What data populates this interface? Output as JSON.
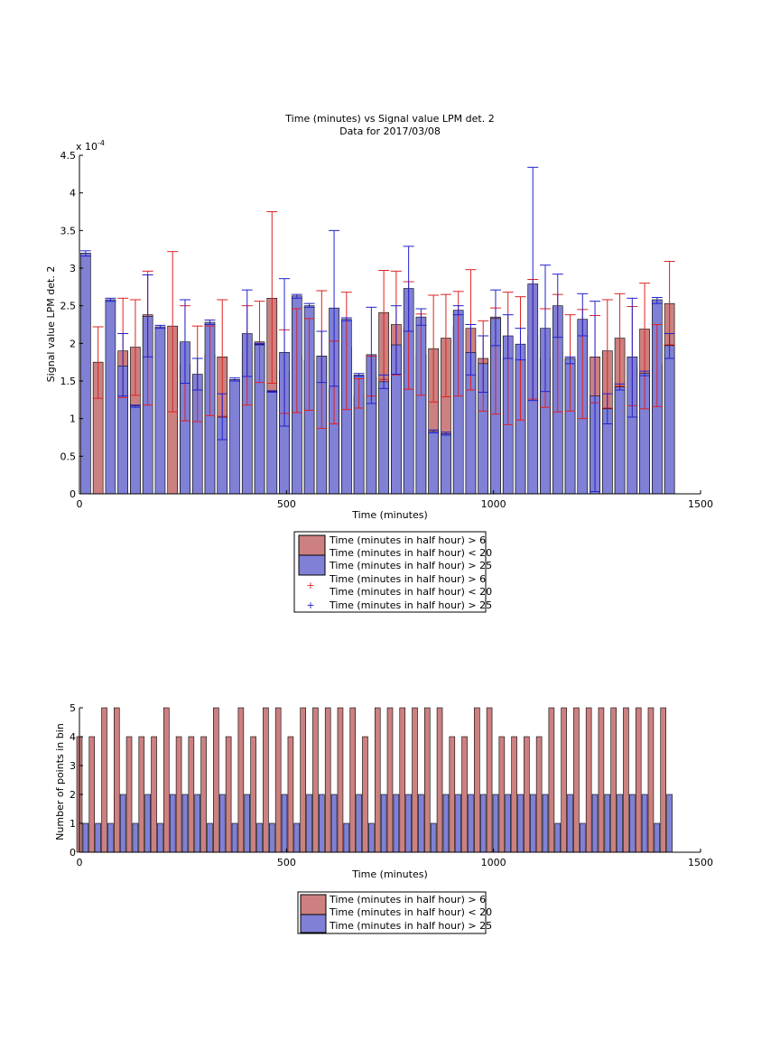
{
  "colors": {
    "red_bar": "#cc8080",
    "blue_bar": "#8080d6",
    "red_err": "#dd2222",
    "blue_err": "#2222cc",
    "axis": "#000000"
  },
  "chart_data": [
    {
      "type": "bar",
      "title": "Time (minutes) vs Signal value LPM det. 2",
      "subtitle": "Data for 2017/03/08",
      "xlabel": "Time (minutes)",
      "ylabel": "Signal value LPM det. 2",
      "y_exponent_label": "x 10",
      "y_exponent_power": "-4",
      "xlim": [
        0,
        1500
      ],
      "ylim": [
        0,
        4.5
      ],
      "xticks": [
        "0",
        "500",
        "1000",
        "1500"
      ],
      "yticks": [
        "0",
        "0.5",
        "1",
        "1.5",
        "2",
        "2.5",
        "3",
        "3.5",
        "4",
        "4.5"
      ],
      "grid": false,
      "legend": {
        "position": "below",
        "entries": [
          "Time (minutes in half hour) > 6",
          "Time (minutes in half hour) < 20",
          "Time (minutes in half hour) > 25",
          "Time (minutes in half hour) > 6",
          "Time (minutes in half hour) < 20",
          "Time (minutes in half hour) > 25"
        ]
      },
      "series": [
        {
          "name": "Time (minutes in half hour) > 6 / Time (minutes in half hour) < 20",
          "color": "#cc8080",
          "x": [
            45,
            105,
            135,
            165,
            225,
            255,
            285,
            315,
            345,
            405,
            435,
            465,
            495,
            525,
            555,
            585,
            615,
            645,
            675,
            705,
            735,
            765,
            795,
            825,
            855,
            885,
            915,
            945,
            975,
            1005,
            1035,
            1065,
            1095,
            1125,
            1155,
            1185,
            1215,
            1245,
            1275,
            1305,
            1335,
            1365,
            1395,
            1425
          ],
          "values": [
            1.75,
            1.9,
            1.95,
            2.38,
            2.23,
            1.72,
            1.55,
            1.85,
            1.82,
            1.9,
            2.02,
            2.6,
            1.63,
            1.83,
            1.77,
            1.83,
            1.4,
            1.95,
            1.3,
            1.55,
            2.41,
            2.25,
            2.2,
            1.85,
            1.93,
            2.07,
            2.22,
            2.2,
            1.8,
            2.35,
            1.8,
            1.8,
            2.1,
            1.8,
            1.9,
            1.8,
            1.8,
            1.82,
            1.9,
            2.07,
            1.7,
            2.19,
            1.72,
            2.53
          ],
          "err_low": [
            1.27,
            1.28,
            1.31,
            1.18,
            1.09,
            0.97,
            0.96,
            1.04,
            1.03,
            1.18,
            1.48,
            1.47,
            1.07,
            1.08,
            1.11,
            0.87,
            0.93,
            1.12,
            1.14,
            1.3,
            1.52,
            1.58,
            1.39,
            1.31,
            1.22,
            1.29,
            1.3,
            1.38,
            1.1,
            1.06,
            0.92,
            0.98,
            1.26,
            1.15,
            1.09,
            1.1,
            1.0,
            1.21,
            1.14,
            1.43,
            1.17,
            1.13,
            1.16,
            1.98
          ],
          "err_high": [
            2.22,
            2.6,
            2.58,
            2.96,
            3.22,
            2.5,
            2.23,
            2.23,
            2.58,
            2.5,
            2.56,
            3.75,
            2.18,
            2.46,
            2.33,
            2.7,
            2.03,
            2.68,
            1.53,
            1.83,
            2.97,
            2.96,
            2.82,
            2.39,
            2.64,
            2.65,
            2.69,
            2.98,
            2.3,
            2.47,
            2.68,
            2.62,
            2.85,
            2.46,
            2.65,
            2.38,
            2.45,
            2.37,
            2.58,
            2.66,
            2.49,
            2.8,
            2.25,
            3.09
          ]
        },
        {
          "name": "Time (minutes in half hour) > 25",
          "color": "#8080d6",
          "x": [
            15,
            75,
            105,
            135,
            165,
            195,
            255,
            285,
            315,
            345,
            375,
            405,
            435,
            465,
            495,
            525,
            555,
            585,
            615,
            645,
            675,
            705,
            735,
            765,
            795,
            825,
            855,
            885,
            915,
            945,
            975,
            1005,
            1035,
            1065,
            1095,
            1125,
            1155,
            1185,
            1215,
            1245,
            1275,
            1305,
            1335,
            1365,
            1395,
            1425
          ],
          "values": [
            3.2,
            2.58,
            1.7,
            1.17,
            2.36,
            2.22,
            2.02,
            1.59,
            2.28,
            1.02,
            1.52,
            2.13,
            1.99,
            1.36,
            1.88,
            2.63,
            2.5,
            1.83,
            2.47,
            2.32,
            1.58,
            1.85,
            1.49,
            1.98,
            2.73,
            2.35,
            0.83,
            0.8,
            2.44,
            1.88,
            1.73,
            2.33,
            2.1,
            1.99,
            2.79,
            2.2,
            2.5,
            1.8,
            2.32,
            1.3,
            1.13,
            1.42,
            1.82,
            1.6,
            2.58,
            1.97
          ],
          "err_low": [
            3.16,
            2.56,
            1.3,
            1.15,
            1.82,
            2.2,
            1.47,
            1.38,
            2.25,
            0.72,
            1.5,
            1.56,
            1.98,
            1.35,
            0.9,
            2.6,
            2.48,
            1.48,
            1.43,
            2.3,
            1.56,
            1.2,
            1.4,
            1.59,
            2.16,
            2.24,
            0.81,
            0.78,
            2.38,
            1.58,
            1.35,
            1.97,
            1.8,
            1.78,
            1.24,
            1.36,
            2.08,
            1.73,
            2.1,
            0.03,
            0.93,
            1.38,
            1.02,
            1.57,
            2.53,
            1.8
          ],
          "err_high": [
            3.23,
            2.6,
            2.13,
            1.18,
            2.91,
            2.24,
            2.58,
            1.8,
            2.31,
            1.33,
            1.54,
            2.71,
            2.0,
            1.37,
            2.86,
            2.65,
            2.53,
            2.16,
            3.5,
            2.34,
            1.6,
            2.48,
            1.58,
            2.5,
            3.29,
            2.46,
            0.85,
            0.82,
            2.5,
            2.25,
            2.1,
            2.71,
            2.38,
            2.2,
            4.34,
            3.04,
            2.92,
            1.82,
            2.66,
            2.56,
            1.33,
            1.46,
            2.6,
            1.63,
            2.61,
            2.13
          ]
        }
      ]
    },
    {
      "type": "bar",
      "title": "",
      "xlabel": "Time (minutes)",
      "ylabel": "Number of points in bin",
      "xlim": [
        0,
        1500
      ],
      "ylim": [
        0,
        5
      ],
      "xticks": [
        "0",
        "500",
        "1000",
        "1500"
      ],
      "yticks": [
        "0",
        "1",
        "2",
        "3",
        "4",
        "5"
      ],
      "grid": false,
      "legend": {
        "position": "below",
        "entries": [
          "Time (minutes in half hour) > 6",
          "Time (minutes in half hour) < 20",
          "Time (minutes in half hour) > 25"
        ]
      },
      "series": [
        {
          "name": "Time (minutes in half hour) > 6 / Time (minutes in half hour) < 20",
          "color": "#cc8080",
          "x": [
            0,
            30,
            60,
            90,
            120,
            150,
            180,
            210,
            240,
            270,
            300,
            330,
            360,
            390,
            420,
            450,
            480,
            510,
            540,
            570,
            600,
            630,
            660,
            690,
            720,
            750,
            780,
            810,
            840,
            870,
            900,
            930,
            960,
            990,
            1020,
            1050,
            1080,
            1110,
            1140,
            1170,
            1200,
            1230,
            1260,
            1290,
            1320,
            1350,
            1380,
            1410
          ],
          "values": [
            4,
            4,
            5,
            5,
            4,
            4,
            4,
            5,
            4,
            4,
            4,
            5,
            4,
            5,
            4,
            5,
            5,
            4,
            5,
            5,
            5,
            5,
            5,
            4,
            5,
            5,
            5,
            5,
            5,
            5,
            4,
            4,
            5,
            5,
            4,
            4,
            4,
            4,
            5,
            5,
            5,
            5,
            5,
            5,
            5,
            5,
            5,
            5
          ]
        },
        {
          "name": "Time (minutes in half hour) > 25",
          "color": "#8080d6",
          "x": [
            15,
            45,
            75,
            105,
            135,
            165,
            195,
            225,
            255,
            285,
            315,
            345,
            375,
            405,
            435,
            465,
            495,
            525,
            555,
            585,
            615,
            645,
            675,
            705,
            735,
            765,
            795,
            825,
            855,
            885,
            915,
            945,
            975,
            1005,
            1035,
            1065,
            1095,
            1125,
            1155,
            1185,
            1215,
            1245,
            1275,
            1305,
            1335,
            1365,
            1395,
            1425
          ],
          "values": [
            1,
            1,
            1,
            2,
            1,
            2,
            1,
            2,
            2,
            2,
            1,
            2,
            1,
            2,
            1,
            1,
            2,
            1,
            2,
            2,
            2,
            1,
            2,
            1,
            2,
            2,
            2,
            2,
            1,
            2,
            2,
            2,
            2,
            2,
            2,
            2,
            2,
            2,
            1,
            2,
            1,
            2,
            2,
            2,
            2,
            2,
            1,
            2
          ]
        }
      ]
    }
  ]
}
